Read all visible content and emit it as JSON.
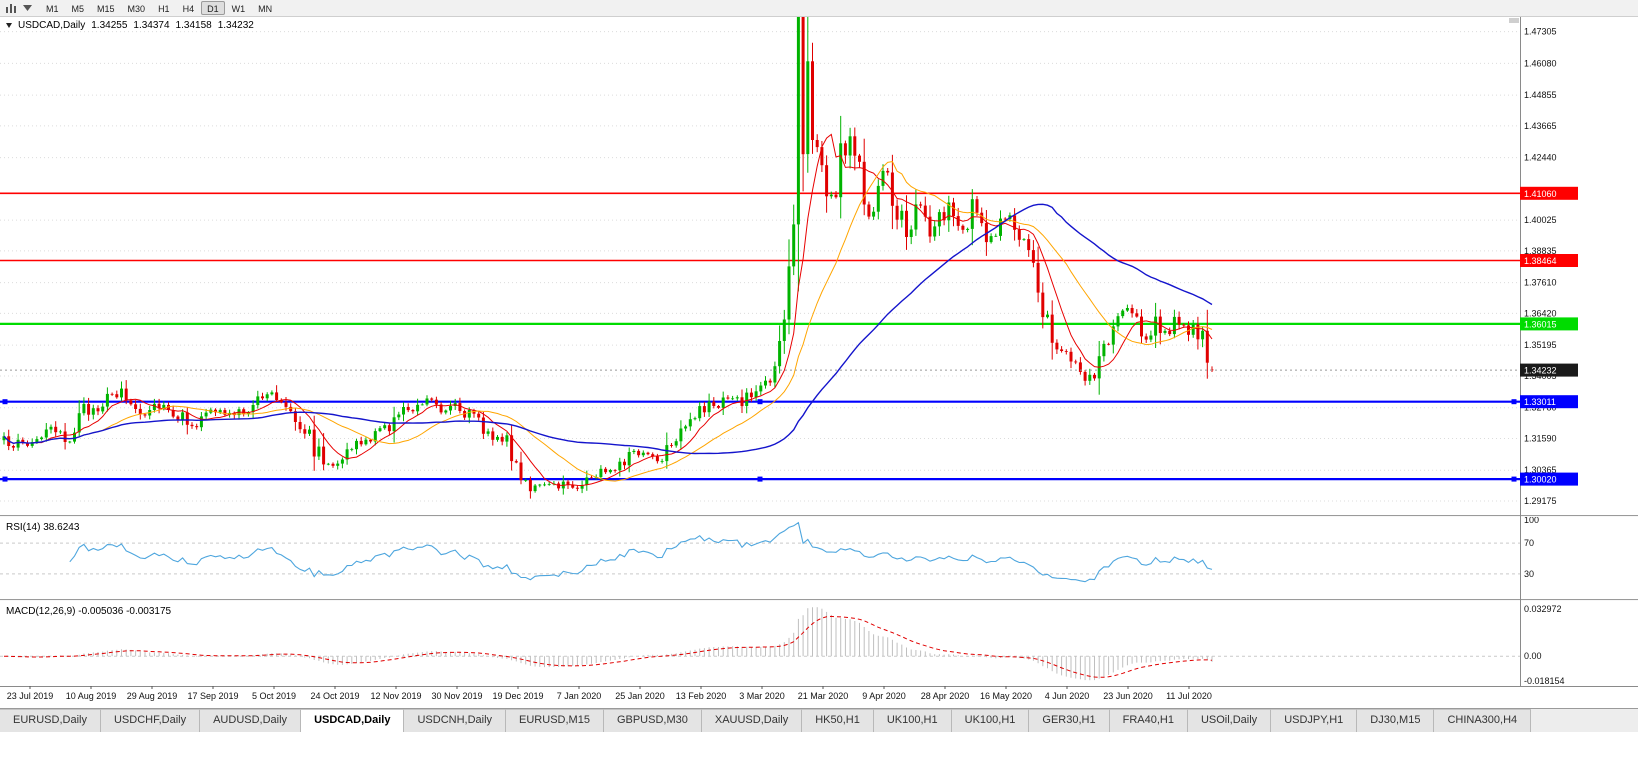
{
  "toolbar": {
    "periods": [
      "M1",
      "M5",
      "M15",
      "M30",
      "H1",
      "H4",
      "D1",
      "W1",
      "MN"
    ],
    "active_period": "D1",
    "icons": [
      "chart-bars-icon",
      "chart-dropdown-icon"
    ]
  },
  "chart": {
    "symbol_period": "USDCAD,Daily",
    "ohlc": {
      "open": "1.34255",
      "high": "1.34374",
      "low": "1.34158",
      "close": "1.34232"
    }
  },
  "rsi": {
    "label": "RSI(14) 38.6243",
    "axis_labels": [
      "100",
      "70",
      "30"
    ]
  },
  "macd": {
    "label": "MACD(12,26,9) -0.005036 -0.003175",
    "axis_labels": [
      "0.032972",
      "0.00",
      "-0.018154"
    ]
  },
  "time_axis": {
    "labels": [
      "23 Jul 2019",
      "10 Aug 2019",
      "29 Aug 2019",
      "17 Sep 2019",
      "5 Oct 2019",
      "24 Oct 2019",
      "12 Nov 2019",
      "30 Nov 2019",
      "19 Dec 2019",
      "7 Jan 2020",
      "25 Jan 2020",
      "13 Feb 2020",
      "3 Mar 2020",
      "21 Mar 2020",
      "9 Apr 2020",
      "28 Apr 2020",
      "16 May 2020",
      "4 Jun 2020",
      "23 Jun 2020",
      "11 Jul 2020"
    ]
  },
  "tabs": {
    "items": [
      "EURUSD,Daily",
      "USDCHF,Daily",
      "AUDUSD,Daily",
      "USDCAD,Daily",
      "USDCNH,Daily",
      "EURUSD,M15",
      "GBPUSD,M30",
      "XAUUSD,Daily",
      "HK50,H1",
      "UK100,H1",
      "UK100,H1",
      "GER30,H1",
      "FRA40,H1",
      "USOil,Daily",
      "USDJPY,H1",
      "DJ30,M15",
      "CHINA300,H4"
    ],
    "active_index": 3
  },
  "chart_data": {
    "type": "candlestick",
    "symbol": "USDCAD",
    "timeframe": "Daily",
    "ylim": [
      1.2875,
      1.476
    ],
    "y_ticks": [
      "1.47305",
      "1.46080",
      "1.44855",
      "1.43665",
      "1.42440",
      "1.40025",
      "1.38835",
      "1.37610",
      "1.36420",
      "1.35195",
      "1.34005",
      "1.32780",
      "1.31590",
      "1.30365",
      "1.29175"
    ],
    "candle_count": 258,
    "close_keyframes": [
      [
        0,
        1.3145
      ],
      [
        5,
        1.3135
      ],
      [
        9,
        1.319
      ],
      [
        13,
        1.3155
      ],
      [
        17,
        1.3255
      ],
      [
        21,
        1.33
      ],
      [
        25,
        1.3335
      ],
      [
        29,
        1.326
      ],
      [
        33,
        1.33
      ],
      [
        37,
        1.325
      ],
      [
        41,
        1.3215
      ],
      [
        45,
        1.327
      ],
      [
        49,
        1.324
      ],
      [
        53,
        1.33
      ],
      [
        57,
        1.333
      ],
      [
        61,
        1.328
      ],
      [
        65,
        1.317
      ],
      [
        68,
        1.306
      ],
      [
        71,
        1.308
      ],
      [
        75,
        1.313
      ],
      [
        79,
        1.317
      ],
      [
        83,
        1.323
      ],
      [
        87,
        1.329
      ],
      [
        91,
        1.332
      ],
      [
        93,
        1.328
      ],
      [
        96,
        1.33
      ],
      [
        99,
        1.325
      ],
      [
        103,
        1.318
      ],
      [
        106,
        1.316
      ],
      [
        109,
        1.306
      ],
      [
        112,
        1.298
      ],
      [
        115,
        1.296
      ],
      [
        118,
        1.299
      ],
      [
        121,
        1.2975
      ],
      [
        124,
        1.3
      ],
      [
        127,
        1.303
      ],
      [
        130,
        1.306
      ],
      [
        133,
        1.309
      ],
      [
        136,
        1.311
      ],
      [
        139,
        1.308
      ],
      [
        142,
        1.316
      ],
      [
        145,
        1.323
      ],
      [
        148,
        1.326
      ],
      [
        151,
        1.329
      ],
      [
        154,
        1.331
      ],
      [
        157,
        1.33
      ],
      [
        160,
        1.334
      ],
      [
        162,
        1.338
      ],
      [
        164,
        1.3425
      ],
      [
        165,
        1.35
      ],
      [
        166,
        1.362
      ],
      [
        167,
        1.378
      ],
      [
        168,
        1.405
      ],
      [
        169,
        1.448
      ],
      [
        170,
        1.432
      ],
      [
        171,
        1.452
      ],
      [
        172,
        1.44
      ],
      [
        173,
        1.428
      ],
      [
        175,
        1.414
      ],
      [
        177,
        1.409
      ],
      [
        178,
        1.424
      ],
      [
        180,
        1.433
      ],
      [
        182,
        1.417
      ],
      [
        184,
        1.404
      ],
      [
        186,
        1.418
      ],
      [
        188,
        1.421
      ],
      [
        190,
        1.405
      ],
      [
        192,
        1.396
      ],
      [
        194,
        1.407
      ],
      [
        196,
        1.401
      ],
      [
        198,
        1.394
      ],
      [
        200,
        1.408
      ],
      [
        202,
        1.4
      ],
      [
        204,
        1.3935
      ],
      [
        206,
        1.404
      ],
      [
        208,
        1.3985
      ],
      [
        210,
        1.3925
      ],
      [
        212,
        1.3995
      ],
      [
        214,
        1.401
      ],
      [
        216,
        1.394
      ],
      [
        218,
        1.383
      ],
      [
        220,
        1.373
      ],
      [
        222,
        1.363
      ],
      [
        224,
        1.354
      ],
      [
        226,
        1.346
      ],
      [
        228,
        1.342
      ],
      [
        230,
        1.3395
      ],
      [
        231,
        1.338
      ],
      [
        233,
        1.346
      ],
      [
        235,
        1.354
      ],
      [
        237,
        1.362
      ],
      [
        239,
        1.366
      ],
      [
        241,
        1.359
      ],
      [
        243,
        1.3555
      ],
      [
        245,
        1.361
      ],
      [
        247,
        1.357
      ],
      [
        249,
        1.36
      ],
      [
        251,
        1.3565
      ],
      [
        253,
        1.3585
      ],
      [
        254,
        1.357
      ],
      [
        255,
        1.3515
      ],
      [
        256,
        1.3435
      ],
      [
        257,
        1.34232
      ]
    ],
    "extremes": {
      "high": 1.468,
      "low": 1.2948
    },
    "last_candle": {
      "open": 1.34255,
      "high": 1.34374,
      "low": 1.34158,
      "close": 1.34232
    },
    "current_price": {
      "value": 1.34232,
      "label": "1.34232",
      "color": "#1a1a1a"
    },
    "colors": {
      "up": "#00B300",
      "down": "#E00000",
      "grid": "#dcdcdc"
    },
    "hlines": [
      {
        "value": 1.4106,
        "label": "1.41060",
        "color": "#FF0000",
        "width": 1.6,
        "handles": false
      },
      {
        "value": 1.38464,
        "label": "1.38464",
        "color": "#FF0000",
        "width": 1.6,
        "handles": false
      },
      {
        "value": 1.36015,
        "label": "1.36015",
        "color": "#00DC00",
        "width": 2.2,
        "handles": false
      },
      {
        "value": 1.33011,
        "label": "1.33011",
        "color": "#0000FF",
        "width": 2.2,
        "handles": true
      },
      {
        "value": 1.3002,
        "label": "1.30020",
        "color": "#0000FF",
        "width": 2.2,
        "handles": true
      }
    ],
    "moving_averages": [
      {
        "period": 8,
        "color": "#E80000",
        "width": 1
      },
      {
        "period": 21,
        "color": "#FFA500",
        "width": 1
      },
      {
        "period": 55,
        "color": "#1414CC",
        "width": 1.4
      }
    ],
    "rsi": {
      "period": 14,
      "current": 38.6243,
      "levels": [
        70,
        30
      ],
      "range": [
        0,
        100
      ],
      "color": "#4EA6DE"
    },
    "macd": {
      "fast": 12,
      "slow": 26,
      "signal_period": 9,
      "macd_current": -0.005036,
      "signal_current": -0.003175,
      "ylim": [
        -0.0182,
        0.033
      ],
      "histogram_color": "#bfbfbf",
      "signal_color": "#E00000"
    }
  }
}
